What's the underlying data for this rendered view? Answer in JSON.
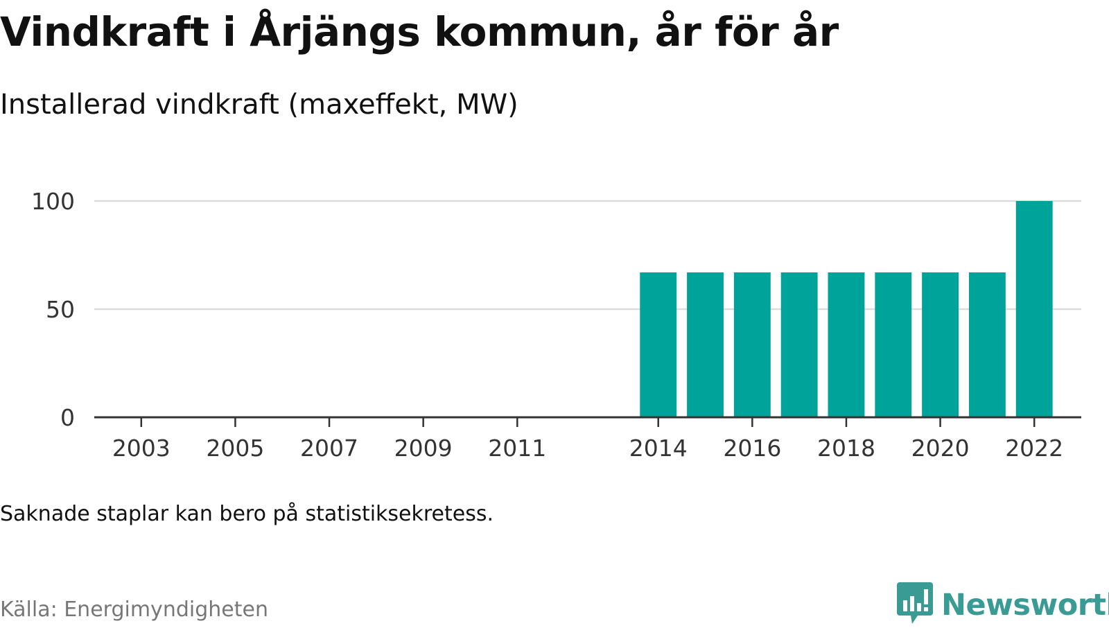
{
  "title": "Vindkraft i Årjängs kommun, år för år",
  "subtitle": "Installerad vindkraft (maxeffekt, MW)",
  "note": "Saknade staplar kan bero på statistiksekretess.",
  "source": "Källa: Energimyndigheten",
  "brand": {
    "name": "Newsworthy",
    "icon": "bar-chart-speech-bubble-icon"
  },
  "colors": {
    "bar": "#00a39a",
    "grid": "#dddddd",
    "axis": "#333333",
    "brand": "#3a9a94"
  },
  "chart_data": {
    "type": "bar",
    "x": [
      2014,
      2015,
      2016,
      2017,
      2018,
      2019,
      2020,
      2021,
      2022
    ],
    "values": [
      67,
      67,
      67,
      67,
      67,
      67,
      67,
      67,
      100
    ],
    "xlim": [
      2002,
      2023
    ],
    "xticks": [
      2003,
      2005,
      2007,
      2009,
      2011,
      2014,
      2016,
      2018,
      2020,
      2022
    ],
    "ylim": [
      0,
      100
    ],
    "yticks": [
      0,
      50,
      100
    ],
    "xlabel": "",
    "ylabel": "",
    "grid": "horizontal"
  }
}
